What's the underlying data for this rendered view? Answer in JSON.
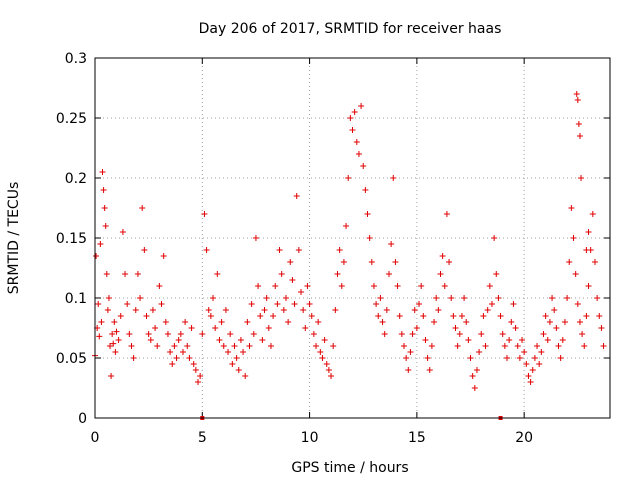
{
  "chart_data": {
    "type": "scatter",
    "title": "Day 206 of 2017, SRMTID for receiver haas",
    "xlabel": "GPS time / hours",
    "ylabel": "SRMTID / TECUs",
    "xlim": [
      0,
      24
    ],
    "ylim": [
      0,
      0.3
    ],
    "xticks": [
      0,
      5,
      10,
      15,
      20
    ],
    "xtick_labels": [
      "0",
      "5",
      "10",
      "15",
      "20"
    ],
    "yticks": [
      0,
      0.05,
      0.1,
      0.15,
      0.2,
      0.25,
      0.3
    ],
    "ytick_labels": [
      "0",
      "0.05",
      "0.1",
      "0.15",
      "0.2",
      "0.25",
      "0.3"
    ],
    "grid": true,
    "marker": "plus",
    "color": "#e00000",
    "series": [
      {
        "name": "SRMTID",
        "points": [
          [
            0.0,
            0.052
          ],
          [
            0.05,
            0.135
          ],
          [
            0.1,
            0.075
          ],
          [
            0.15,
            0.095
          ],
          [
            0.2,
            0.068
          ],
          [
            0.25,
            0.145
          ],
          [
            0.3,
            0.08
          ],
          [
            0.35,
            0.205
          ],
          [
            0.4,
            0.19
          ],
          [
            0.45,
            0.175
          ],
          [
            0.5,
            0.16
          ],
          [
            0.55,
            0.12
          ],
          [
            0.6,
            0.09
          ],
          [
            0.65,
            0.1
          ],
          [
            0.7,
            0.06
          ],
          [
            0.75,
            0.035
          ],
          [
            0.8,
            0.07
          ],
          [
            0.85,
            0.062
          ],
          [
            0.9,
            0.08
          ],
          [
            0.95,
            0.055
          ],
          [
            1.0,
            0.072
          ],
          [
            1.1,
            0.065
          ],
          [
            1.2,
            0.085
          ],
          [
            1.3,
            0.155
          ],
          [
            1.4,
            0.12
          ],
          [
            1.5,
            0.095
          ],
          [
            1.6,
            0.07
          ],
          [
            1.7,
            0.06
          ],
          [
            1.8,
            0.05
          ],
          [
            1.9,
            0.09
          ],
          [
            2.0,
            0.12
          ],
          [
            2.1,
            0.1
          ],
          [
            2.2,
            0.175
          ],
          [
            2.3,
            0.14
          ],
          [
            2.4,
            0.085
          ],
          [
            2.5,
            0.07
          ],
          [
            2.6,
            0.065
          ],
          [
            2.7,
            0.09
          ],
          [
            2.8,
            0.075
          ],
          [
            2.9,
            0.06
          ],
          [
            3.0,
            0.11
          ],
          [
            3.1,
            0.095
          ],
          [
            3.2,
            0.135
          ],
          [
            3.3,
            0.08
          ],
          [
            3.4,
            0.07
          ],
          [
            3.5,
            0.055
          ],
          [
            3.6,
            0.045
          ],
          [
            3.7,
            0.06
          ],
          [
            3.8,
            0.05
          ],
          [
            3.9,
            0.065
          ],
          [
            4.0,
            0.07
          ],
          [
            4.1,
            0.055
          ],
          [
            4.2,
            0.08
          ],
          [
            4.3,
            0.06
          ],
          [
            4.4,
            0.05
          ],
          [
            4.5,
            0.075
          ],
          [
            4.6,
            0.045
          ],
          [
            4.7,
            0.04
          ],
          [
            4.8,
            0.03
          ],
          [
            4.9,
            0.035
          ],
          [
            5.0,
            0.07
          ],
          [
            5.1,
            0.17
          ],
          [
            5.2,
            0.14
          ],
          [
            5.3,
            0.09
          ],
          [
            5.4,
            0.085
          ],
          [
            5.5,
            0.1
          ],
          [
            5.6,
            0.075
          ],
          [
            5.7,
            0.12
          ],
          [
            5.8,
            0.065
          ],
          [
            5.9,
            0.08
          ],
          [
            6.0,
            0.06
          ],
          [
            6.1,
            0.09
          ],
          [
            6.2,
            0.055
          ],
          [
            6.3,
            0.07
          ],
          [
            6.4,
            0.045
          ],
          [
            6.5,
            0.06
          ],
          [
            6.6,
            0.05
          ],
          [
            6.7,
            0.04
          ],
          [
            6.8,
            0.065
          ],
          [
            6.9,
            0.055
          ],
          [
            7.0,
            0.035
          ],
          [
            7.1,
            0.08
          ],
          [
            7.2,
            0.06
          ],
          [
            7.3,
            0.095
          ],
          [
            7.4,
            0.07
          ],
          [
            7.5,
            0.15
          ],
          [
            7.6,
            0.11
          ],
          [
            7.7,
            0.085
          ],
          [
            7.8,
            0.065
          ],
          [
            7.9,
            0.09
          ],
          [
            8.0,
            0.1
          ],
          [
            8.1,
            0.075
          ],
          [
            8.2,
            0.06
          ],
          [
            8.3,
            0.085
          ],
          [
            8.4,
            0.11
          ],
          [
            8.5,
            0.095
          ],
          [
            8.6,
            0.14
          ],
          [
            8.7,
            0.12
          ],
          [
            8.8,
            0.09
          ],
          [
            8.9,
            0.1
          ],
          [
            9.0,
            0.08
          ],
          [
            9.1,
            0.13
          ],
          [
            9.2,
            0.115
          ],
          [
            9.3,
            0.095
          ],
          [
            9.4,
            0.185
          ],
          [
            9.5,
            0.14
          ],
          [
            9.6,
            0.105
          ],
          [
            9.7,
            0.09
          ],
          [
            9.8,
            0.075
          ],
          [
            9.9,
            0.11
          ],
          [
            10.0,
            0.095
          ],
          [
            10.1,
            0.085
          ],
          [
            10.2,
            0.07
          ],
          [
            10.3,
            0.06
          ],
          [
            10.4,
            0.08
          ],
          [
            10.5,
            0.055
          ],
          [
            10.6,
            0.05
          ],
          [
            10.7,
            0.065
          ],
          [
            10.8,
            0.045
          ],
          [
            10.9,
            0.04
          ],
          [
            11.0,
            0.035
          ],
          [
            11.1,
            0.06
          ],
          [
            11.2,
            0.09
          ],
          [
            11.3,
            0.12
          ],
          [
            11.4,
            0.14
          ],
          [
            11.5,
            0.11
          ],
          [
            11.6,
            0.13
          ],
          [
            11.7,
            0.16
          ],
          [
            11.8,
            0.2
          ],
          [
            11.9,
            0.25
          ],
          [
            12.0,
            0.24
          ],
          [
            12.1,
            0.255
          ],
          [
            12.2,
            0.23
          ],
          [
            12.3,
            0.22
          ],
          [
            12.4,
            0.26
          ],
          [
            12.5,
            0.21
          ],
          [
            12.6,
            0.19
          ],
          [
            12.7,
            0.17
          ],
          [
            12.8,
            0.15
          ],
          [
            12.9,
            0.13
          ],
          [
            13.0,
            0.11
          ],
          [
            13.1,
            0.095
          ],
          [
            13.2,
            0.085
          ],
          [
            13.3,
            0.1
          ],
          [
            13.4,
            0.08
          ],
          [
            13.5,
            0.07
          ],
          [
            13.6,
            0.09
          ],
          [
            13.7,
            0.12
          ],
          [
            13.8,
            0.145
          ],
          [
            13.9,
            0.2
          ],
          [
            14.0,
            0.13
          ],
          [
            14.1,
            0.11
          ],
          [
            14.2,
            0.085
          ],
          [
            14.3,
            0.07
          ],
          [
            14.4,
            0.06
          ],
          [
            14.5,
            0.05
          ],
          [
            14.6,
            0.04
          ],
          [
            14.7,
            0.055
          ],
          [
            14.8,
            0.07
          ],
          [
            14.9,
            0.09
          ],
          [
            15.0,
            0.075
          ],
          [
            15.1,
            0.095
          ],
          [
            15.2,
            0.11
          ],
          [
            15.3,
            0.085
          ],
          [
            15.4,
            0.065
          ],
          [
            15.5,
            0.05
          ],
          [
            15.6,
            0.04
          ],
          [
            15.7,
            0.06
          ],
          [
            15.8,
            0.08
          ],
          [
            15.9,
            0.1
          ],
          [
            16.0,
            0.09
          ],
          [
            16.1,
            0.12
          ],
          [
            16.2,
            0.135
          ],
          [
            16.3,
            0.11
          ],
          [
            16.4,
            0.17
          ],
          [
            16.5,
            0.13
          ],
          [
            16.6,
            0.1
          ],
          [
            16.7,
            0.085
          ],
          [
            16.8,
            0.075
          ],
          [
            16.9,
            0.06
          ],
          [
            17.0,
            0.07
          ],
          [
            17.1,
            0.085
          ],
          [
            17.2,
            0.1
          ],
          [
            17.3,
            0.08
          ],
          [
            17.4,
            0.065
          ],
          [
            17.5,
            0.05
          ],
          [
            17.6,
            0.035
          ],
          [
            17.7,
            0.025
          ],
          [
            17.8,
            0.04
          ],
          [
            17.9,
            0.055
          ],
          [
            18.0,
            0.07
          ],
          [
            18.1,
            0.085
          ],
          [
            18.2,
            0.06
          ],
          [
            18.3,
            0.09
          ],
          [
            18.4,
            0.11
          ],
          [
            18.5,
            0.095
          ],
          [
            18.6,
            0.15
          ],
          [
            18.7,
            0.12
          ],
          [
            18.8,
            0.1
          ],
          [
            18.9,
            0.085
          ],
          [
            19.0,
            0.07
          ],
          [
            19.1,
            0.06
          ],
          [
            19.2,
            0.05
          ],
          [
            19.3,
            0.065
          ],
          [
            19.4,
            0.08
          ],
          [
            19.5,
            0.095
          ],
          [
            19.6,
            0.075
          ],
          [
            19.7,
            0.06
          ],
          [
            19.8,
            0.05
          ],
          [
            19.9,
            0.065
          ],
          [
            20.0,
            0.055
          ],
          [
            20.1,
            0.045
          ],
          [
            20.2,
            0.035
          ],
          [
            20.3,
            0.03
          ],
          [
            20.4,
            0.04
          ],
          [
            20.5,
            0.05
          ],
          [
            20.6,
            0.06
          ],
          [
            20.7,
            0.045
          ],
          [
            20.8,
            0.055
          ],
          [
            20.9,
            0.07
          ],
          [
            21.0,
            0.085
          ],
          [
            21.1,
            0.065
          ],
          [
            21.2,
            0.08
          ],
          [
            21.3,
            0.1
          ],
          [
            21.4,
            0.09
          ],
          [
            21.5,
            0.075
          ],
          [
            21.6,
            0.06
          ],
          [
            21.7,
            0.05
          ],
          [
            21.8,
            0.065
          ],
          [
            21.9,
            0.08
          ],
          [
            22.0,
            0.1
          ],
          [
            22.1,
            0.13
          ],
          [
            22.2,
            0.175
          ],
          [
            22.3,
            0.15
          ],
          [
            22.4,
            0.12
          ],
          [
            22.5,
            0.095
          ],
          [
            22.6,
            0.08
          ],
          [
            22.7,
            0.07
          ],
          [
            22.8,
            0.06
          ],
          [
            22.9,
            0.085
          ],
          [
            23.0,
            0.11
          ],
          [
            23.1,
            0.14
          ],
          [
            23.2,
            0.17
          ],
          [
            23.3,
            0.13
          ],
          [
            23.4,
            0.1
          ],
          [
            23.5,
            0.085
          ],
          [
            23.6,
            0.075
          ],
          [
            23.7,
            0.06
          ],
          [
            22.45,
            0.27
          ],
          [
            22.5,
            0.265
          ],
          [
            22.55,
            0.245
          ],
          [
            22.6,
            0.235
          ],
          [
            22.65,
            0.2
          ],
          [
            23.0,
            0.155
          ],
          [
            22.9,
            0.14
          ]
        ]
      }
    ],
    "zero_markers": [
      5.0,
      18.9
    ]
  }
}
